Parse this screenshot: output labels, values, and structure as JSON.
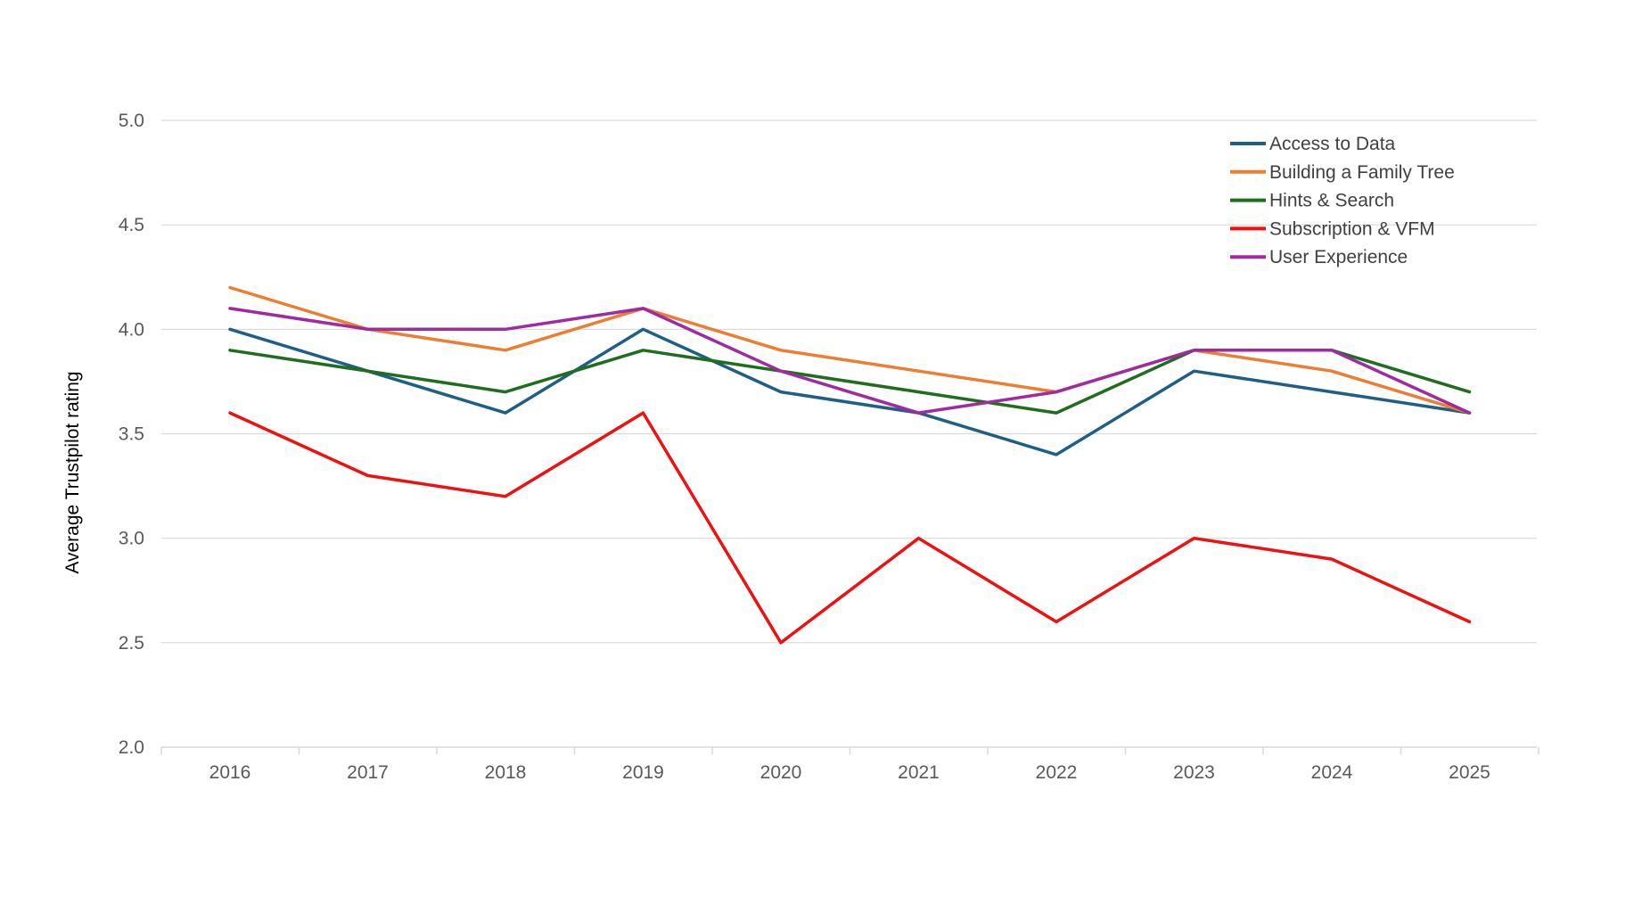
{
  "chart_data": {
    "type": "line",
    "title": "",
    "xlabel": "",
    "ylabel": "Average Trustpilot rating",
    "categories": [
      "2016",
      "2017",
      "2018",
      "2019",
      "2020",
      "2021",
      "2022",
      "2023",
      "2024",
      "2025"
    ],
    "ylim": [
      2.0,
      5.0
    ],
    "yticks": [
      "2.0",
      "2.5",
      "3.0",
      "3.5",
      "4.0",
      "4.5",
      "5.0"
    ],
    "grid": true,
    "legend_position": "top-right",
    "series": [
      {
        "name": "Access to Data",
        "color": "#1F5F86",
        "values": [
          4.0,
          3.8,
          3.6,
          4.0,
          3.7,
          3.6,
          3.4,
          3.8,
          3.7,
          3.6
        ]
      },
      {
        "name": "Building a Family Tree",
        "color": "#ED7D31",
        "values": [
          4.2,
          4.0,
          3.9,
          4.1,
          3.9,
          3.8,
          3.7,
          3.9,
          3.8,
          3.6
        ]
      },
      {
        "name": "Hints & Search",
        "color": "#1E6E1E",
        "values": [
          3.9,
          3.8,
          3.7,
          3.9,
          3.8,
          3.7,
          3.6,
          3.9,
          3.9,
          3.7
        ]
      },
      {
        "name": "Subscription & VFM",
        "color": "#EE1111",
        "values": [
          3.6,
          3.3,
          3.2,
          3.6,
          2.5,
          3.0,
          2.6,
          3.0,
          2.9,
          2.6
        ]
      },
      {
        "name": "User Experience",
        "color": "#A02AA0",
        "values": [
          4.1,
          4.0,
          4.0,
          4.1,
          3.8,
          3.6,
          3.7,
          3.9,
          3.9,
          3.6
        ]
      }
    ]
  }
}
